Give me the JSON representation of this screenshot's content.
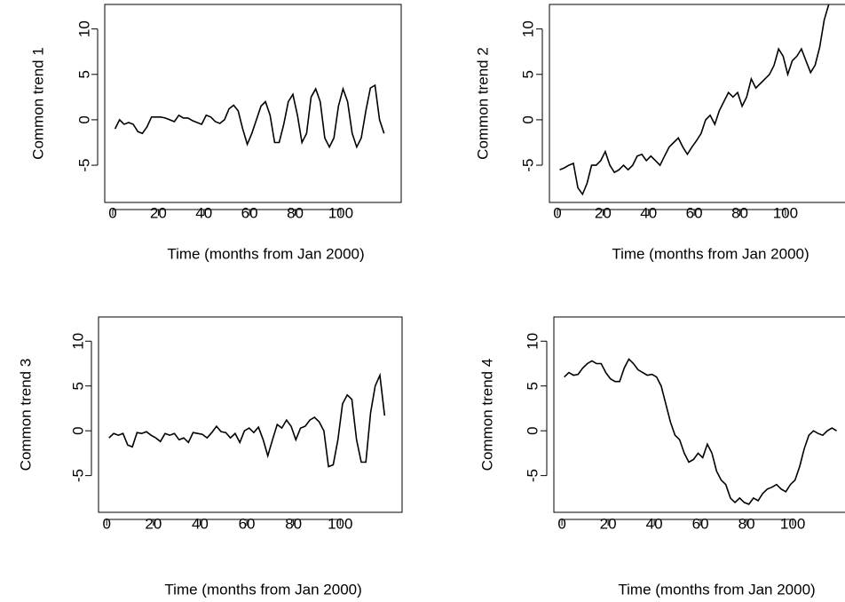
{
  "chart_data": [
    {
      "type": "line",
      "xlabel": "Time (months from Jan 2000)",
      "ylabel": "Common trend 1",
      "color": "#000000",
      "xlim": [
        -3.5,
        126.5
      ],
      "ylim": [
        -9.1,
        12.7
      ],
      "xticks": [
        0,
        20,
        40,
        60,
        80,
        100
      ],
      "yticks": [
        -5,
        0,
        5,
        10
      ],
      "x": [
        1,
        3,
        5,
        7,
        9,
        11,
        13,
        15,
        17,
        19,
        21,
        23,
        25,
        27,
        29,
        31,
        33,
        35,
        37,
        39,
        41,
        43,
        45,
        47,
        49,
        51,
        53,
        55,
        57,
        59,
        61,
        63,
        65,
        67,
        69,
        71,
        73,
        75,
        77,
        79,
        81,
        83,
        85,
        87,
        89,
        91,
        93,
        95,
        97,
        99,
        101,
        103,
        105,
        107,
        109,
        111,
        113,
        115,
        117,
        119
      ],
      "values": [
        -1,
        0,
        -0.5,
        -0.3,
        -0.5,
        -1.3,
        -1.5,
        -0.8,
        0.3,
        0.3,
        0.3,
        0.2,
        0,
        -0.2,
        0.5,
        0.2,
        0.2,
        -0.1,
        -0.3,
        -0.5,
        0.5,
        0.3,
        -0.2,
        -0.4,
        0,
        1.2,
        1.6,
        1,
        -1,
        -2.7,
        -1.5,
        0,
        1.5,
        2,
        0.5,
        -2.5,
        -2.5,
        -0.5,
        2,
        2.8,
        0.5,
        -2.5,
        -1.5,
        2.5,
        3.4,
        2,
        -2,
        -3,
        -2,
        1.5,
        3.4,
        2,
        -1.5,
        -3,
        -2,
        1,
        3.5,
        3.8,
        0,
        -1.5
      ]
    },
    {
      "type": "line",
      "xlabel": "Time (months from Jan 2000)",
      "ylabel": "Common trend 2",
      "color": "#000000",
      "xlim": [
        -3.5,
        126.5
      ],
      "ylim": [
        -9.1,
        12.7
      ],
      "xticks": [
        0,
        20,
        40,
        60,
        80,
        100
      ],
      "yticks": [
        -5,
        0,
        5,
        10
      ],
      "x": [
        1,
        3,
        5,
        7,
        9,
        11,
        13,
        15,
        17,
        19,
        21,
        23,
        25,
        27,
        29,
        31,
        33,
        35,
        37,
        39,
        41,
        43,
        45,
        47,
        49,
        51,
        53,
        55,
        57,
        59,
        61,
        63,
        65,
        67,
        69,
        71,
        73,
        75,
        77,
        79,
        81,
        83,
        85,
        87,
        89,
        91,
        93,
        95,
        97,
        99,
        101,
        103,
        105,
        107,
        109,
        111,
        113,
        115,
        117,
        119
      ],
      "values": [
        -5.5,
        -5.3,
        -5,
        -4.8,
        -7.5,
        -8.2,
        -7,
        -5,
        -5,
        -4.5,
        -3.5,
        -5,
        -5.8,
        -5.5,
        -5,
        -5.5,
        -5,
        -4,
        -3.8,
        -4.5,
        -4,
        -4.5,
        -5,
        -4,
        -3,
        -2.5,
        -2,
        -3,
        -3.8,
        -3,
        -2.3,
        -1.5,
        0,
        0.5,
        -0.5,
        1,
        2,
        3,
        2.5,
        3,
        1.5,
        2.5,
        4.5,
        3.5,
        4,
        4.5,
        5,
        6,
        7.8,
        7,
        5,
        6.5,
        7,
        7.8,
        6.5,
        5.2,
        6,
        8,
        11,
        12.7
      ]
    },
    {
      "type": "line",
      "xlabel": "Time (months from Jan 2000)",
      "ylabel": "Common trend 3",
      "color": "#000000",
      "xlim": [
        -3.5,
        126.5
      ],
      "ylim": [
        -9.1,
        12.7
      ],
      "xticks": [
        0,
        20,
        40,
        60,
        80,
        100
      ],
      "yticks": [
        -5,
        0,
        5,
        10
      ],
      "x": [
        1,
        3,
        5,
        7,
        9,
        11,
        13,
        15,
        17,
        19,
        21,
        23,
        25,
        27,
        29,
        31,
        33,
        35,
        37,
        39,
        41,
        43,
        45,
        47,
        49,
        51,
        53,
        55,
        57,
        59,
        61,
        63,
        65,
        67,
        69,
        71,
        73,
        75,
        77,
        79,
        81,
        83,
        85,
        87,
        89,
        91,
        93,
        95,
        97,
        99,
        101,
        103,
        105,
        107,
        109,
        111,
        113,
        115,
        117,
        119
      ],
      "values": [
        -0.8,
        -0.3,
        -0.5,
        -0.3,
        -1.6,
        -1.8,
        -0.2,
        -0.3,
        -0.1,
        -0.5,
        -0.8,
        -1.2,
        -0.3,
        -0.5,
        -0.3,
        -1,
        -0.8,
        -1.3,
        -0.2,
        -0.3,
        -0.4,
        -0.8,
        -0.2,
        0.5,
        -0.1,
        -0.2,
        -0.8,
        -0.3,
        -1.3,
        0,
        0.3,
        -0.2,
        0.4,
        -1,
        -2.8,
        -1,
        0.7,
        0.3,
        1.2,
        0.5,
        -1,
        0.3,
        0.5,
        1.2,
        1.5,
        1,
        0,
        -4,
        -3.8,
        -1,
        3,
        4,
        3.5,
        -1,
        -3.5,
        -3.5,
        2,
        5,
        6.2,
        1.7
      ]
    },
    {
      "type": "line",
      "xlabel": "Time (months from Jan 2000)",
      "ylabel": "Common trend 4",
      "color": "#000000",
      "xlim": [
        -3.5,
        126.5
      ],
      "ylim": [
        -9.1,
        12.7
      ],
      "xticks": [
        0,
        20,
        40,
        60,
        80,
        100
      ],
      "yticks": [
        -5,
        0,
        5,
        10
      ],
      "x": [
        1,
        3,
        5,
        7,
        9,
        11,
        13,
        15,
        17,
        19,
        21,
        23,
        25,
        27,
        29,
        31,
        33,
        35,
        37,
        39,
        41,
        43,
        45,
        47,
        49,
        51,
        53,
        55,
        57,
        59,
        61,
        63,
        65,
        67,
        69,
        71,
        73,
        75,
        77,
        79,
        81,
        83,
        85,
        87,
        89,
        91,
        93,
        95,
        97,
        99,
        101,
        103,
        105,
        107,
        109,
        111,
        113,
        115,
        117,
        119
      ],
      "values": [
        6,
        6.5,
        6.2,
        6.3,
        7,
        7.5,
        7.8,
        7.5,
        7.5,
        6.5,
        5.8,
        5.5,
        5.5,
        7,
        8,
        7.5,
        6.8,
        6.5,
        6.2,
        6.3,
        6,
        5,
        3,
        1,
        -0.5,
        -1,
        -2.5,
        -3.5,
        -3.2,
        -2.5,
        -3,
        -1.5,
        -2.5,
        -4.5,
        -5.5,
        -6,
        -7.5,
        -8,
        -7.5,
        -8,
        -8.2,
        -7.5,
        -7.8,
        -7,
        -6.5,
        -6.3,
        -6,
        -6.5,
        -6.8,
        -6,
        -5.5,
        -4,
        -2,
        -0.5,
        0,
        -0.3,
        -0.5,
        0,
        0.3,
        0
      ]
    }
  ]
}
